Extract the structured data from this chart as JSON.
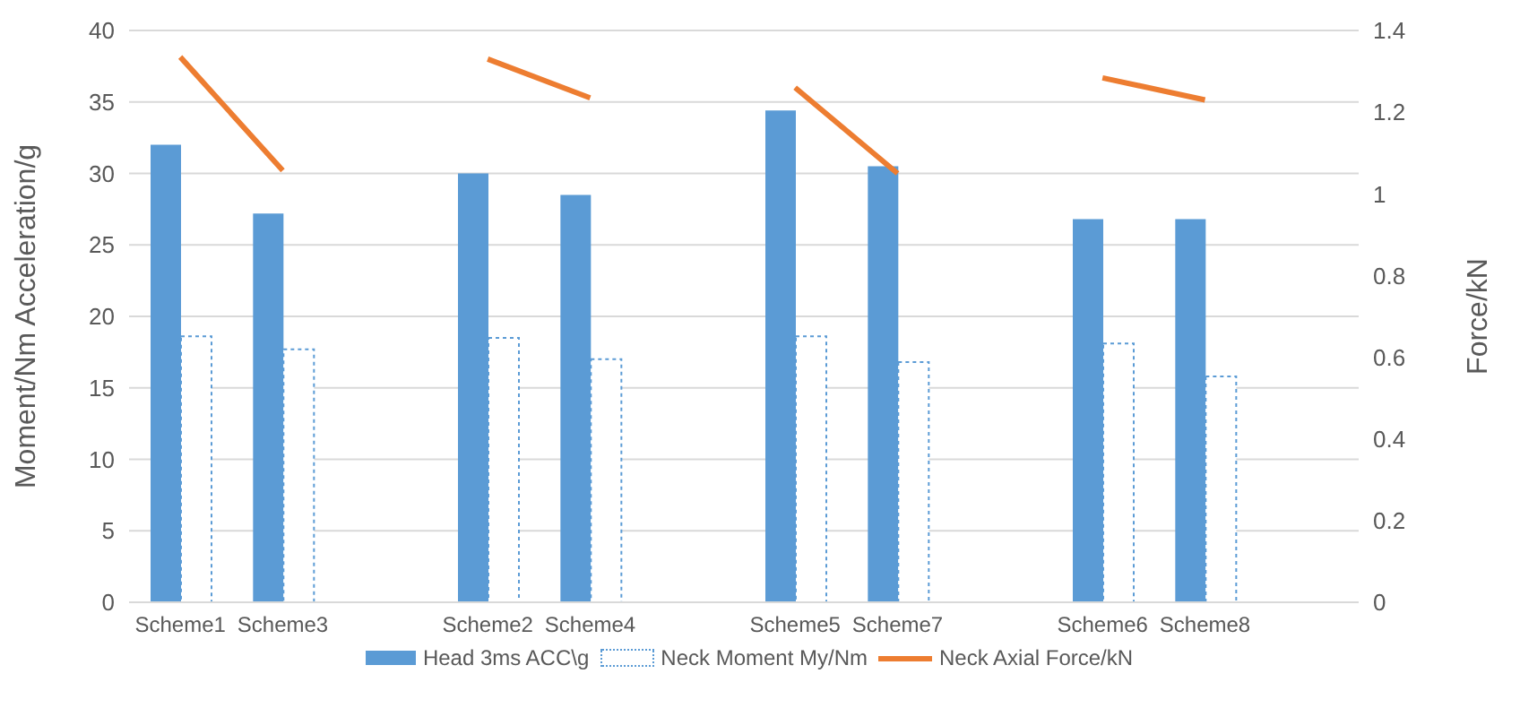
{
  "chart_data": {
    "type": "bar",
    "categories": [
      "Scheme1",
      "Scheme3",
      null,
      "Scheme2",
      "Scheme4",
      null,
      "Scheme5",
      "Scheme7",
      null,
      "Scheme6",
      "Scheme8",
      null
    ],
    "series": [
      {
        "name": "Head 3ms ACC\\g",
        "color": "#5b9bd5",
        "values": [
          32,
          27.2,
          null,
          30,
          28.5,
          null,
          34.4,
          30.5,
          null,
          26.8,
          26.8,
          null
        ]
      },
      {
        "name": "Neck Moment My/Nm",
        "color": "#5b9bd5",
        "line_style": "dotted",
        "values": [
          18.6,
          17.7,
          null,
          18.5,
          17,
          null,
          18.6,
          16.8,
          null,
          18.1,
          15.8,
          null
        ]
      },
      {
        "name": "Neck Axial Force/kN",
        "type": "line",
        "axis": "y2",
        "color": "#ed7d31",
        "values": [
          1.335,
          1.057,
          null,
          1.33,
          1.235,
          null,
          1.26,
          1.05,
          null,
          1.284,
          1.23,
          null
        ]
      }
    ],
    "ylabel": "Moment/Nm        Acceleration/g",
    "y2label": "Force/kN",
    "ylim": [
      0,
      40
    ],
    "yticks": [
      0,
      5,
      10,
      15,
      20,
      25,
      30,
      35,
      40
    ],
    "y2lim": [
      0,
      1.4
    ],
    "y2ticks": [
      0,
      0.2,
      0.4,
      0.6,
      0.8,
      1,
      1.2,
      1.4
    ],
    "grid": "y",
    "legend": "bottom",
    "marker": "none"
  }
}
